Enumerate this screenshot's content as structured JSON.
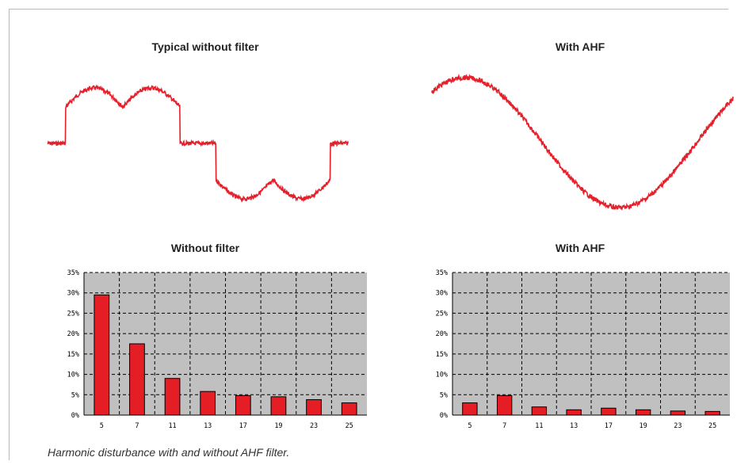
{
  "waveforms": {
    "without": {
      "title": "Typical without filter"
    },
    "with": {
      "title": "With AHF"
    }
  },
  "colors": {
    "wave": "#e5202b",
    "bar": "#e41e24",
    "plot_bg": "#c0c0c0"
  },
  "chart_data": [
    {
      "type": "bar",
      "title": "Without filter",
      "categories": [
        "5",
        "7",
        "11",
        "13",
        "17",
        "19",
        "23",
        "25"
      ],
      "values": [
        29.5,
        17.5,
        9,
        5.8,
        4.8,
        4.5,
        3.8,
        3
      ],
      "ylim": [
        0,
        35
      ],
      "yticks": [
        "0%",
        "5%",
        "10%",
        "15%",
        "20%",
        "25%",
        "30%",
        "35%"
      ],
      "grid": true
    },
    {
      "type": "bar",
      "title": "With AHF",
      "categories": [
        "5",
        "7",
        "11",
        "13",
        "17",
        "19",
        "23",
        "25"
      ],
      "values": [
        3,
        4.8,
        2,
        1.3,
        1.7,
        1.3,
        1,
        0.9
      ],
      "ylim": [
        0,
        35
      ],
      "yticks": [
        "0%",
        "5%",
        "10%",
        "15%",
        "20%",
        "25%",
        "30%",
        "35%"
      ],
      "grid": true
    }
  ],
  "caption": "Harmonic disturbance with and without AHF filter."
}
